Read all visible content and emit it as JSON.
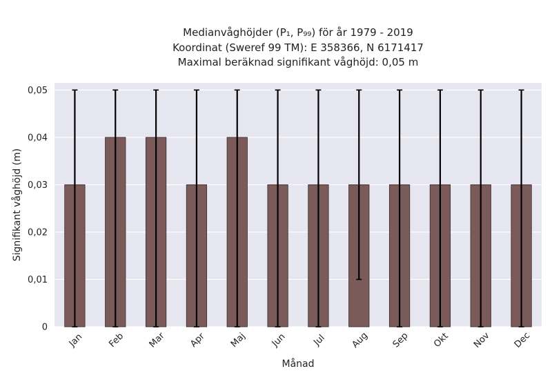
{
  "chart_data": {
    "type": "bar",
    "title_lines": [
      "Medianvåghöjder (P₁, P₉₉) för år 1979 - 2019",
      "Koordinat (Sweref 99 TM): E 358366, N 6171417",
      "Maximal beräknad signifikant våghöjd: 0,05 m"
    ],
    "xlabel": "Månad",
    "ylabel": "Signifikant våghöjd (m)",
    "categories": [
      "Jan",
      "Feb",
      "Mar",
      "Apr",
      "Maj",
      "Jun",
      "Jul",
      "Aug",
      "Sep",
      "Okt",
      "Nov",
      "Dec"
    ],
    "values": [
      0.03,
      0.04,
      0.04,
      0.03,
      0.04,
      0.03,
      0.03,
      0.03,
      0.03,
      0.03,
      0.03,
      0.03
    ],
    "error_low": [
      0,
      0,
      0,
      0,
      0,
      0,
      0,
      0.01,
      0,
      0,
      0,
      0
    ],
    "error_high": [
      0.05,
      0.05,
      0.05,
      0.05,
      0.05,
      0.05,
      0.05,
      0.05,
      0.05,
      0.05,
      0.05,
      0.05
    ],
    "ylim": [
      0,
      0.0515
    ],
    "yticks": [
      0,
      0.01,
      0.02,
      0.03,
      0.04,
      0.05
    ],
    "ytick_labels": [
      "0",
      "0,01",
      "0,02",
      "0,03",
      "0,04",
      "0,05"
    ],
    "grid": true,
    "colors": {
      "bar": "#7b5a5a",
      "bar_edge": "#3a2a2a",
      "error": "#000000",
      "plot_bg": "#e6e6f0",
      "grid": "#ffffff"
    }
  }
}
